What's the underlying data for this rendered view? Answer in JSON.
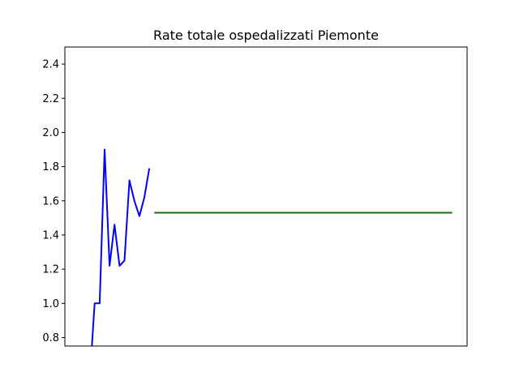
{
  "chart_data": {
    "type": "line",
    "title": "Rate totale ospedalizzati Piemonte",
    "xlabel": "",
    "ylabel": "",
    "ylim": [
      0.75,
      2.5
    ],
    "xlim": [
      -5,
      76
    ],
    "x_tick_labels_shown": false,
    "y_ticks": [
      0.8,
      1.0,
      1.2,
      1.4,
      1.6,
      1.8,
      2.0,
      2.2,
      2.4
    ],
    "y_tick_labels": [
      "0.8",
      "1.0",
      "1.2",
      "1.4",
      "1.6",
      "1.8",
      "2.0",
      "2.2",
      "2.4"
    ],
    "grid": false,
    "legend": "none",
    "series": [
      {
        "color": "#0000ff",
        "x": [
          0,
          1,
          2,
          3,
          4,
          5,
          6,
          7,
          8,
          9,
          10,
          11,
          12
        ],
        "y": [
          0.55,
          1.0,
          1.0,
          1.9,
          1.22,
          1.46,
          1.22,
          1.25,
          1.72,
          1.6,
          1.51,
          1.62,
          1.79
        ]
      },
      {
        "color": "#008000",
        "x": [
          13,
          73
        ],
        "y": [
          1.53,
          1.53
        ]
      }
    ]
  }
}
